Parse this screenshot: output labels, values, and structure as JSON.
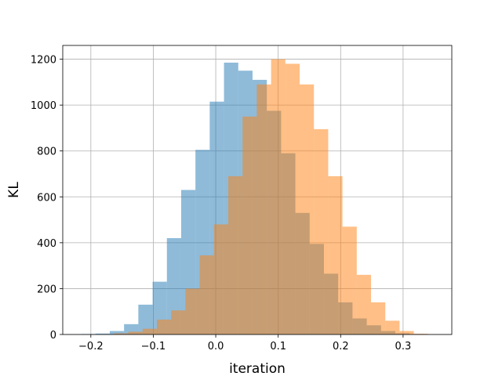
{
  "chart_data": {
    "type": "histogram",
    "xlabel": "iteration",
    "ylabel": "KL",
    "xlim": [
      -0.245,
      0.378
    ],
    "ylim": [
      0,
      1260
    ],
    "grid": true,
    "x_ticks": [
      -0.2,
      -0.1,
      0.0,
      0.1,
      0.2,
      0.3
    ],
    "x_tick_labels": [
      "−0.2",
      "−0.1",
      "0.0",
      "0.1",
      "0.2",
      "0.3"
    ],
    "y_ticks": [
      0,
      200,
      400,
      600,
      800,
      1000,
      1200
    ],
    "y_tick_labels": [
      "0",
      "200",
      "400",
      "600",
      "800",
      "1000",
      "1200"
    ],
    "series": [
      {
        "color": "#1f77b4",
        "opacity": 0.5,
        "bin_start": -0.2154,
        "bin_width": 0.02286,
        "values": [
          2,
          4,
          15,
          45,
          130,
          230,
          420,
          630,
          805,
          1015,
          1185,
          1150,
          1110,
          975,
          790,
          530,
          395,
          265,
          140,
          70,
          40,
          15,
          5,
          2
        ]
      },
      {
        "color": "#ff7f0e",
        "opacity": 0.5,
        "bin_start": -0.1857,
        "bin_width": 0.02286,
        "values": [
          1,
          5,
          12,
          25,
          65,
          105,
          200,
          345,
          480,
          690,
          950,
          1090,
          1200,
          1180,
          1090,
          895,
          690,
          470,
          260,
          140,
          60,
          15,
          3
        ]
      }
    ]
  }
}
